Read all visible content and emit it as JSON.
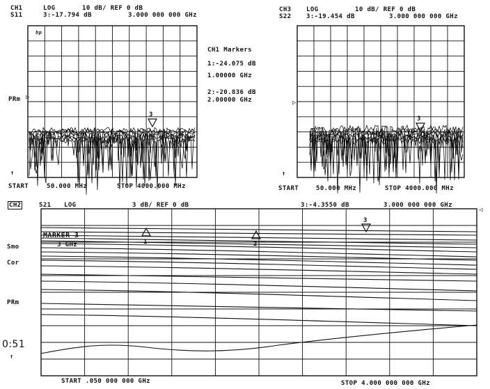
{
  "ch1": {
    "channel": "CH1",
    "param": "S11",
    "format": "LOG",
    "scale": "10 dB/ REF 0 dB",
    "marker_readout": "3:-17.794 dB",
    "marker_freq": "3.000 000 000 GHz",
    "start": "START",
    "start_val": "50.000 MHz",
    "stop": "STOP 4000.000 MHz",
    "badge": "hp",
    "ref_label": "PRm",
    "marker_num": "3"
  },
  "markers_box": {
    "title": "CH1 Markers",
    "m1_val": "1:-24.075 dB",
    "m1_freq": "1.00000 GHz",
    "m2_val": "2:-20.836 dB",
    "m2_freq": "2.00000 GHz"
  },
  "ch3": {
    "channel": "CH3",
    "param": "S22",
    "format": "LOG",
    "scale": "10 dB/ REF 0 dB",
    "marker_readout": "3:-19.454 dB",
    "marker_freq": "3.000 000 000 GHz",
    "start": "START",
    "start_val": "50.000 MHz",
    "stop": "STOP 4000.000 MHz",
    "marker_num": "3"
  },
  "ch2": {
    "channel": "CH2",
    "param": "S21",
    "format": "LOG",
    "scale": "3 dB/ REF 0 dB",
    "marker_readout": "3:-4.3550 dB",
    "marker_freq": "3.000 000 000 GHz",
    "marker_title": "MARKER 3",
    "marker_sub": "3 GHz",
    "smo": "Smo",
    "cor": "Cor",
    "prm": "PRm",
    "time": "0:51",
    "start": "START .050 000 000 GHz",
    "stop": "STOP 4.000 000 000 GHz",
    "m1": "1",
    "m2": "2",
    "m3": "3"
  },
  "colors": {
    "ink": "#111111",
    "paper": "#ffffff"
  }
}
